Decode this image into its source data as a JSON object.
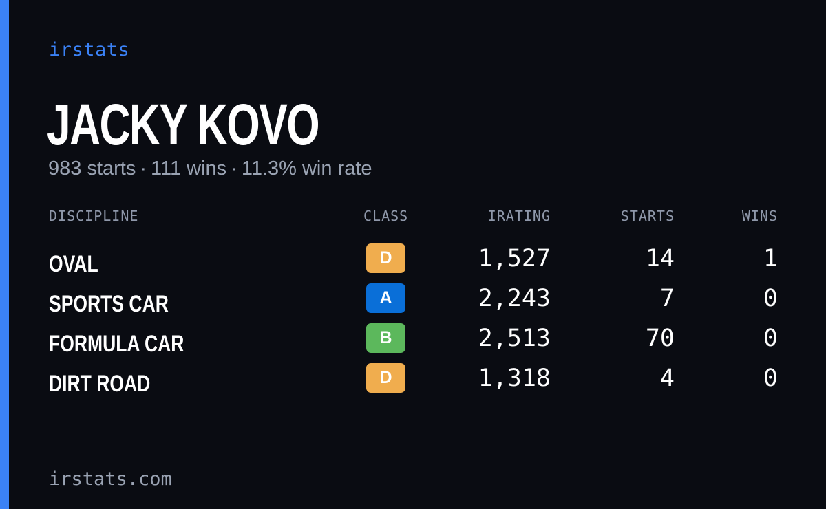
{
  "brand": "irstats",
  "driver": {
    "name": "JACKY KOVO",
    "starts_text": "983 starts",
    "wins_text": "111 wins",
    "winrate_text": "11.3% win rate",
    "separator": "·"
  },
  "table": {
    "headers": {
      "discipline": "DISCIPLINE",
      "class": "CLASS",
      "irating": "IRATING",
      "starts": "STARTS",
      "wins": "WINS"
    },
    "rows": [
      {
        "discipline": "OVAL",
        "class": "D",
        "class_color": "#f0ad4e",
        "irating": "1,527",
        "starts": "14",
        "wins": "1"
      },
      {
        "discipline": "SPORTS CAR",
        "class": "A",
        "class_color": "#0a6fd8",
        "irating": "2,243",
        "starts": "7",
        "wins": "0"
      },
      {
        "discipline": "FORMULA CAR",
        "class": "B",
        "class_color": "#5cb85c",
        "irating": "2,513",
        "starts": "70",
        "wins": "0"
      },
      {
        "discipline": "DIRT ROAD",
        "class": "D",
        "class_color": "#f0ad4e",
        "irating": "1,318",
        "starts": "4",
        "wins": "0"
      }
    ]
  },
  "footer": "irstats.com",
  "colors": {
    "background": "#0a0c12",
    "accent": "#3b82f6",
    "muted": "#9aa3b3"
  }
}
